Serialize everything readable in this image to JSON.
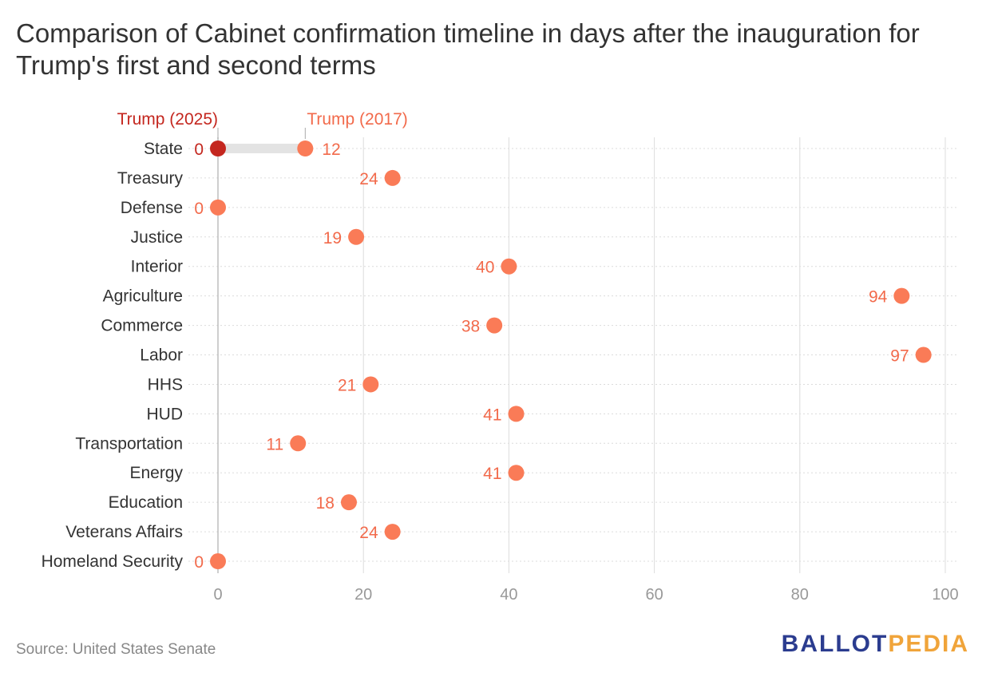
{
  "title": "Comparison of Cabinet confirmation timeline in days after the inauguration for Trump's first and second terms",
  "source": "Source: United States Senate",
  "logo": {
    "part1": "BALLOT",
    "part2": "PEDIA"
  },
  "colors": {
    "series_2025": "#c4271f",
    "series_2017": "#fa7b57",
    "label_2025": "#c4271f",
    "label_2017": "#f26a4b",
    "connector": "#e3e3e3",
    "grid": "#dcdcdc",
    "axis_text": "#999999",
    "category_text": "#333333"
  },
  "chart_data": {
    "type": "dot",
    "title": "Comparison of Cabinet confirmation timeline in days after the inauguration for Trump's first and second terms",
    "xlabel": "",
    "ylabel": "",
    "xlim": [
      0,
      100
    ],
    "xticks": [
      0,
      20,
      40,
      60,
      80,
      100
    ],
    "categories": [
      "State",
      "Treasury",
      "Defense",
      "Justice",
      "Interior",
      "Agriculture",
      "Commerce",
      "Labor",
      "HHS",
      "HUD",
      "Transportation",
      "Energy",
      "Education",
      "Veterans Affairs",
      "Homeland Security"
    ],
    "series": [
      {
        "name": "Trump (2025)",
        "values": [
          0,
          null,
          null,
          null,
          null,
          null,
          null,
          null,
          null,
          null,
          null,
          null,
          null,
          null,
          null
        ]
      },
      {
        "name": "Trump (2017)",
        "values": [
          12,
          24,
          0,
          19,
          40,
          94,
          38,
          97,
          21,
          41,
          11,
          41,
          18,
          24,
          0
        ]
      }
    ],
    "value_labels": [
      {
        "category": "State",
        "left": "0",
        "right": "12"
      },
      {
        "category": "Treasury",
        "left": "24"
      },
      {
        "category": "Defense",
        "left": "0"
      },
      {
        "category": "Justice",
        "left": "19"
      },
      {
        "category": "Interior",
        "left": "40"
      },
      {
        "category": "Agriculture",
        "left": "94"
      },
      {
        "category": "Commerce",
        "left": "38"
      },
      {
        "category": "Labor",
        "left": "97"
      },
      {
        "category": "HHS",
        "left": "21"
      },
      {
        "category": "HUD",
        "left": "41"
      },
      {
        "category": "Transportation",
        "left": "11"
      },
      {
        "category": "Energy",
        "left": "41"
      },
      {
        "category": "Education",
        "left": "18"
      },
      {
        "category": "Veterans Affairs",
        "left": "24"
      },
      {
        "category": "Homeland Security",
        "left": "0"
      }
    ],
    "legend": "top, labels above first row"
  }
}
